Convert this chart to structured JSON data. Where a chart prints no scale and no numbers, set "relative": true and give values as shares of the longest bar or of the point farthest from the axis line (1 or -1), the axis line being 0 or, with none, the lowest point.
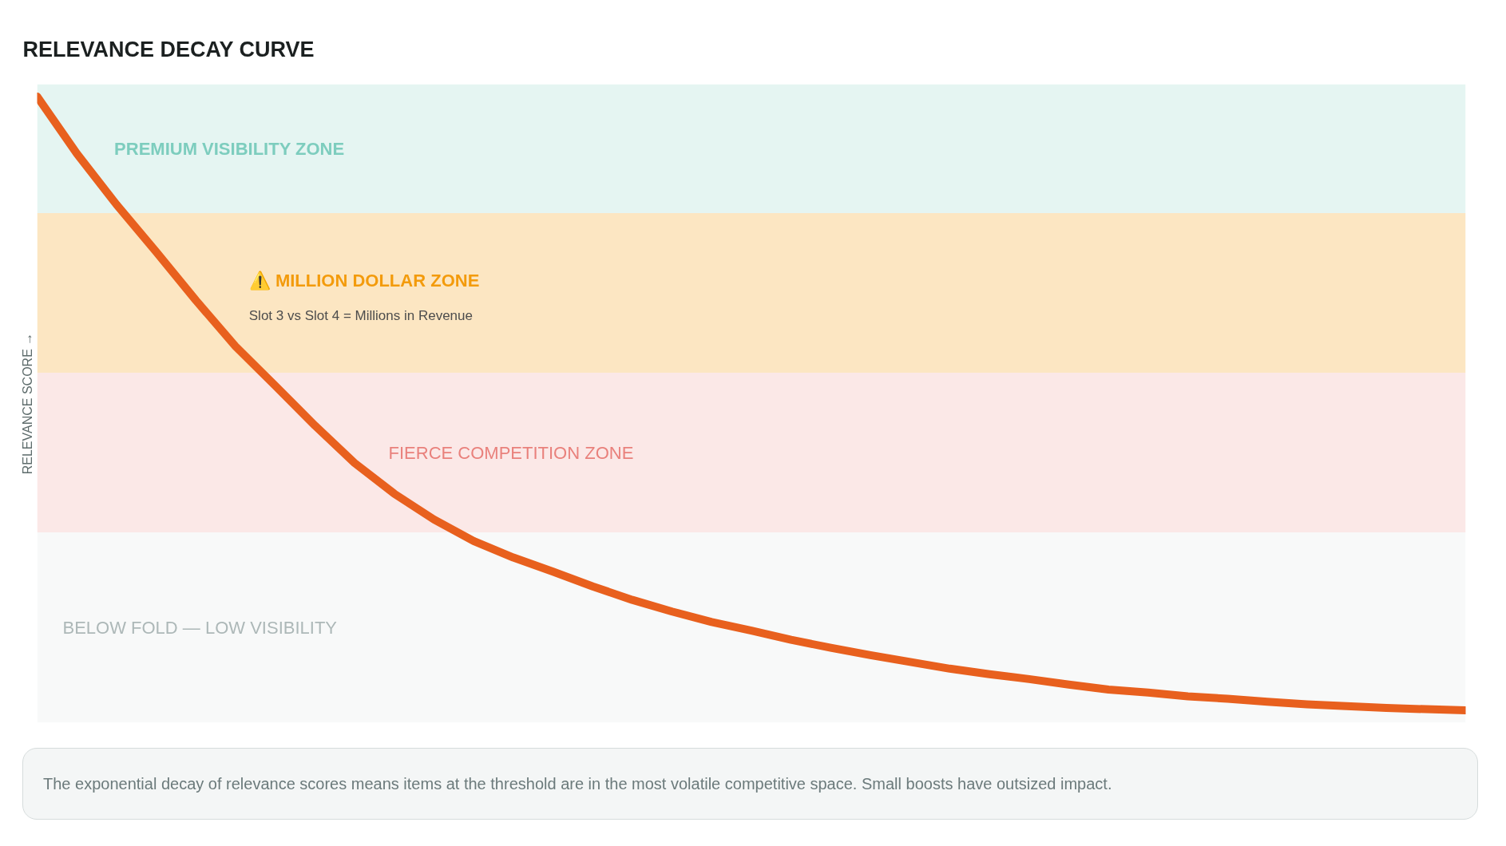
{
  "chart_data": {
    "type": "line",
    "title": "RELEVANCE DECAY CURVE",
    "ylabel": "RELEVANCE SCORE →",
    "categories": [
      null,
      null,
      null,
      null,
      null,
      null,
      null,
      null,
      null,
      null,
      null,
      null,
      null,
      null,
      null,
      null,
      null,
      null,
      null,
      null,
      null,
      null,
      null,
      null,
      null,
      null,
      null,
      null,
      null,
      null,
      null,
      null,
      null,
      null,
      null,
      null,
      null
    ],
    "values": [
      1,
      0.907,
      0.824,
      0.747,
      0.668,
      0.593,
      0.529,
      0.464,
      0.403,
      0.353,
      0.311,
      0.276,
      0.249,
      0.226,
      0.202,
      0.18,
      0.161,
      0.144,
      0.13,
      0.115,
      0.102,
      0.09,
      0.079,
      0.068,
      0.059,
      0.051,
      0.042,
      0.034,
      0.029,
      0.023,
      0.019,
      0.014,
      0.01,
      0.007,
      0.004,
      0.002,
      0
    ],
    "color": "#e8601e",
    "relative": true,
    "bands": [
      {
        "axis": "y",
        "from": 0.81,
        "to": 1.02,
        "label": "PREMIUM VISIBILITY ZONE",
        "color": "#e5f5f2"
      },
      {
        "axis": "y",
        "from": 0.55,
        "to": 0.81,
        "label": "⚠️ MILLION DOLLAR ZONE",
        "color": "#fce6c2"
      },
      {
        "axis": "y",
        "from": 0.29,
        "to": 0.55,
        "label": "FIERCE COMPETITION ZONE",
        "color": "#fbe8e7"
      },
      {
        "axis": "y",
        "from": -0.02,
        "to": 0.29,
        "label": "BELOW FOLD — LOW VISIBILITY",
        "color": "#f8f9f9"
      }
    ],
    "annotations": [
      "Slot 3 vs Slot 4 = Millions in Revenue",
      "The exponential decay of relevance scores means items at the threshold are in the most volatile competitive space. Small boosts have outsized impact."
    ]
  }
}
